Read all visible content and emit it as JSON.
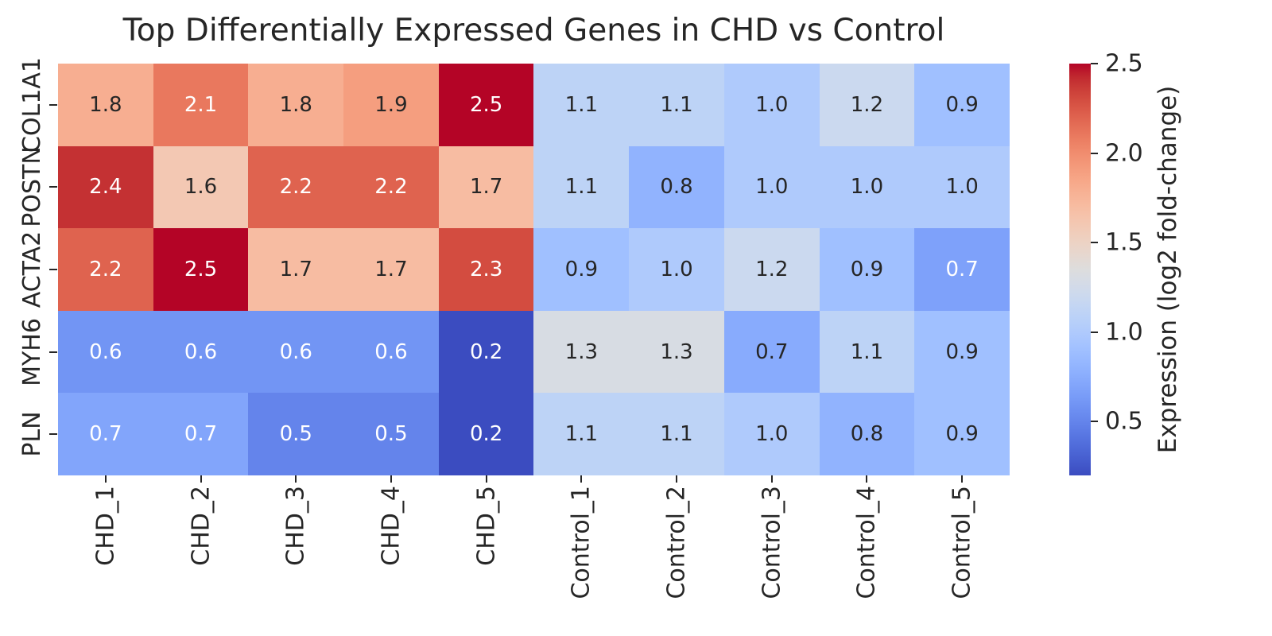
{
  "title": "Top Differentially Expressed Genes in CHD vs Control",
  "colors": {
    "background": "#ffffff",
    "text": "#262626",
    "annotation_dark": "#262626",
    "annotation_light": "#ffffff",
    "tick_mark": "#262626"
  },
  "chart_data": {
    "type": "heatmap",
    "title": "Top Differentially Expressed Genes in CHD vs Control",
    "rows": [
      "COL1A1",
      "POSTN",
      "ACTA2",
      "MYH6",
      "PLN"
    ],
    "columns": [
      "CHD_1",
      "CHD_2",
      "CHD_3",
      "CHD_4",
      "CHD_5",
      "Control_1",
      "Control_2",
      "Control_3",
      "Control_4",
      "Control_5"
    ],
    "values": [
      [
        1.8,
        2.1,
        1.8,
        1.9,
        2.5,
        1.1,
        1.1,
        1.0,
        1.2,
        0.9
      ],
      [
        2.4,
        1.6,
        2.2,
        2.2,
        1.7,
        1.1,
        0.8,
        1.0,
        1.0,
        1.0
      ],
      [
        2.2,
        2.5,
        1.7,
        1.7,
        2.3,
        0.9,
        1.0,
        1.2,
        0.9,
        0.68
      ],
      [
        0.6,
        0.6,
        0.6,
        0.6,
        0.2,
        1.3,
        1.3,
        0.74,
        1.1,
        0.9
      ],
      [
        0.7,
        0.7,
        0.5,
        0.5,
        0.2,
        1.1,
        1.1,
        1.0,
        0.8,
        0.9
      ]
    ],
    "annotation_decimals": 1,
    "vmin": 0.2,
    "vmax": 2.5,
    "colormap": "coolwarm",
    "colormap_stops": [
      [
        59,
        76,
        192
      ],
      [
        68,
        90,
        204
      ],
      [
        77,
        104,
        215
      ],
      [
        87,
        117,
        225
      ],
      [
        98,
        130,
        234
      ],
      [
        108,
        142,
        241
      ],
      [
        119,
        154,
        247
      ],
      [
        130,
        165,
        251
      ],
      [
        141,
        176,
        254
      ],
      [
        152,
        185,
        255
      ],
      [
        163,
        194,
        255
      ],
      [
        174,
        201,
        253
      ],
      [
        184,
        208,
        249
      ],
      [
        194,
        213,
        244
      ],
      [
        204,
        217,
        238
      ],
      [
        213,
        219,
        230
      ],
      [
        221,
        221,
        221
      ],
      [
        229,
        216,
        209
      ],
      [
        236,
        211,
        197
      ],
      [
        241,
        204,
        185
      ],
      [
        245,
        196,
        173
      ],
      [
        247,
        187,
        160
      ],
      [
        247,
        177,
        148
      ],
      [
        247,
        166,
        135
      ],
      [
        244,
        154,
        123
      ],
      [
        241,
        141,
        111
      ],
      [
        236,
        127,
        99
      ],
      [
        229,
        112,
        88
      ],
      [
        222,
        96,
        77
      ],
      [
        213,
        80,
        66
      ],
      [
        203,
        62,
        56
      ],
      [
        192,
        40,
        47
      ],
      [
        180,
        4,
        38
      ]
    ],
    "colorbar": {
      "label": "Expression (log2 fold-change)",
      "ticks": [
        2.5,
        2.0,
        1.5,
        1.0,
        0.5
      ]
    },
    "legend_position": "right",
    "grid": false
  }
}
